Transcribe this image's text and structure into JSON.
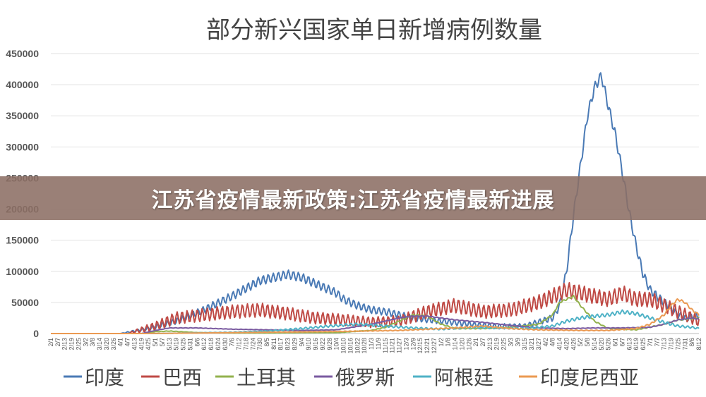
{
  "banner": {
    "text": "江苏省疫情最新政策:江苏省疫情最新进展"
  },
  "chart_data": {
    "type": "line",
    "title": "部分新兴国家单日新增病例数量",
    "ylim": [
      0,
      450000
    ],
    "yticks": [
      "0",
      "50000",
      "100000",
      "150000",
      "200000",
      "250000",
      "300000",
      "350000",
      "400000",
      "450000"
    ],
    "xticks": [
      "2/1",
      "2/7",
      "2/13",
      "2/19",
      "2/25",
      "3/2",
      "3/8",
      "3/14",
      "3/20",
      "3/26",
      "4/1",
      "4/7",
      "4/13",
      "4/19",
      "4/25",
      "5/1",
      "5/7",
      "5/13",
      "5/19",
      "5/25",
      "5/31",
      "6/6",
      "6/12",
      "6/18",
      "6/24",
      "6/30",
      "7/6",
      "7/12",
      "7/18",
      "7/24",
      "7/30",
      "8/5",
      "8/11",
      "8/17",
      "8/23",
      "8/29",
      "9/4",
      "9/10",
      "9/16",
      "9/22",
      "9/28",
      "10/4",
      "10/10",
      "10/16",
      "10/22",
      "10/28",
      "11/3",
      "11/9",
      "11/15",
      "11/21",
      "11/27",
      "12/3",
      "12/9",
      "12/15",
      "12/21",
      "12/27",
      "1/2",
      "1/8",
      "1/14",
      "1/20",
      "1/26",
      "2/1",
      "2/7",
      "2/13",
      "2/19",
      "2/25",
      "3/3",
      "3/9",
      "3/15",
      "3/21",
      "3/27",
      "4/2",
      "4/8",
      "4/14",
      "4/20",
      "4/26",
      "5/2",
      "5/8",
      "5/14",
      "5/20",
      "5/26",
      "6/1",
      "6/7",
      "6/13",
      "6/19",
      "6/25",
      "7/1",
      "7/7",
      "7/13",
      "7/19",
      "7/25",
      "7/31",
      "8/6",
      "8/12"
    ],
    "grid": true,
    "legend_position": "bottom",
    "series": [
      {
        "name": "印度",
        "color": "#4a7ab5",
        "x": [
          0,
          10,
          14,
          18,
          22,
          26,
          30,
          34,
          36,
          38,
          40,
          41,
          42,
          44,
          46,
          48,
          52,
          56,
          60,
          64,
          68,
          72,
          73,
          74,
          75,
          76,
          77,
          78,
          79,
          80,
          81,
          82,
          83,
          84,
          85,
          86,
          87,
          88,
          89,
          90,
          91,
          92,
          93
        ],
        "values": [
          0,
          0,
          8000,
          20000,
          38000,
          60000,
          85000,
          95000,
          90000,
          80000,
          70000,
          65000,
          55000,
          45000,
          38000,
          35000,
          25000,
          20000,
          15000,
          12000,
          12000,
          25000,
          45000,
          100000,
          190000,
          270000,
          350000,
          395000,
          415000,
          365000,
          320000,
          260000,
          195000,
          140000,
          95000,
          70000,
          60000,
          50000,
          40000,
          30000,
          25000,
          28000,
          30000
        ],
        "jitter": 14000
      },
      {
        "name": "巴西",
        "color": "#bf4a45",
        "x": [
          0,
          11,
          15,
          18,
          22,
          26,
          30,
          34,
          38,
          42,
          46,
          50,
          54,
          58,
          62,
          66,
          70,
          72,
          74,
          76,
          78,
          80,
          82,
          84,
          86,
          88,
          90,
          92,
          93
        ],
        "values": [
          0,
          0,
          12000,
          25000,
          30000,
          35000,
          38000,
          32000,
          25000,
          22000,
          18000,
          20000,
          35000,
          45000,
          35000,
          38000,
          50000,
          60000,
          70000,
          65000,
          60000,
          55000,
          65000,
          55000,
          55000,
          45000,
          35000,
          25000,
          20000
        ],
        "jitter": 26000
      },
      {
        "name": "土耳其",
        "color": "#93b24e",
        "x": [
          0,
          13,
          15,
          17,
          21,
          26,
          31,
          36,
          41,
          46,
          48,
          50,
          52,
          54,
          56,
          58,
          62,
          66,
          70,
          72,
          73,
          74,
          75,
          76,
          78,
          80,
          84,
          88,
          90,
          93
        ],
        "values": [
          0,
          0,
          3000,
          4000,
          1500,
          1000,
          1000,
          1500,
          1500,
          5000,
          10000,
          20000,
          30000,
          28000,
          15000,
          8000,
          8000,
          10000,
          15000,
          30000,
          50000,
          55000,
          60000,
          45000,
          20000,
          8000,
          6000,
          15000,
          22000,
          25000
        ],
        "jitter": 3000
      },
      {
        "name": "俄罗斯",
        "color": "#7a5aa0",
        "x": [
          0,
          13,
          15,
          17,
          21,
          26,
          31,
          36,
          41,
          46,
          50,
          52,
          54,
          56,
          58,
          62,
          66,
          70,
          74,
          78,
          82,
          86,
          88,
          90,
          92,
          93
        ],
        "values": [
          0,
          0,
          5000,
          9000,
          9000,
          7000,
          6000,
          5000,
          6000,
          15000,
          25000,
          28000,
          28000,
          25000,
          22000,
          18000,
          13000,
          9000,
          8000,
          9000,
          9000,
          10000,
          15000,
          22000,
          25000,
          23000
        ],
        "jitter": 1500
      },
      {
        "name": "阿根廷",
        "color": "#4fb2c6",
        "x": [
          0,
          15,
          20,
          26,
          31,
          36,
          40,
          44,
          48,
          52,
          56,
          60,
          64,
          68,
          72,
          74,
          76,
          78,
          80,
          82,
          84,
          86,
          88,
          90,
          92,
          93
        ],
        "values": [
          0,
          0,
          1000,
          2000,
          4000,
          8000,
          12000,
          15000,
          12000,
          9000,
          7000,
          10000,
          9000,
          8000,
          12000,
          20000,
          25000,
          28000,
          30000,
          35000,
          32000,
          25000,
          18000,
          12000,
          10000,
          8000
        ],
        "jitter": 7000
      },
      {
        "name": "印度尼西亚",
        "color": "#eb9a52",
        "x": [
          0,
          13,
          18,
          26,
          34,
          42,
          50,
          58,
          62,
          66,
          70,
          76,
          80,
          84,
          86,
          88,
          89,
          90,
          91,
          92,
          93
        ],
        "values": [
          0,
          0,
          500,
          1500,
          2500,
          3500,
          5000,
          9000,
          12000,
          8000,
          6000,
          5000,
          5000,
          8000,
          15000,
          30000,
          45000,
          55000,
          50000,
          38000,
          30000
        ],
        "jitter": 4000
      }
    ]
  }
}
